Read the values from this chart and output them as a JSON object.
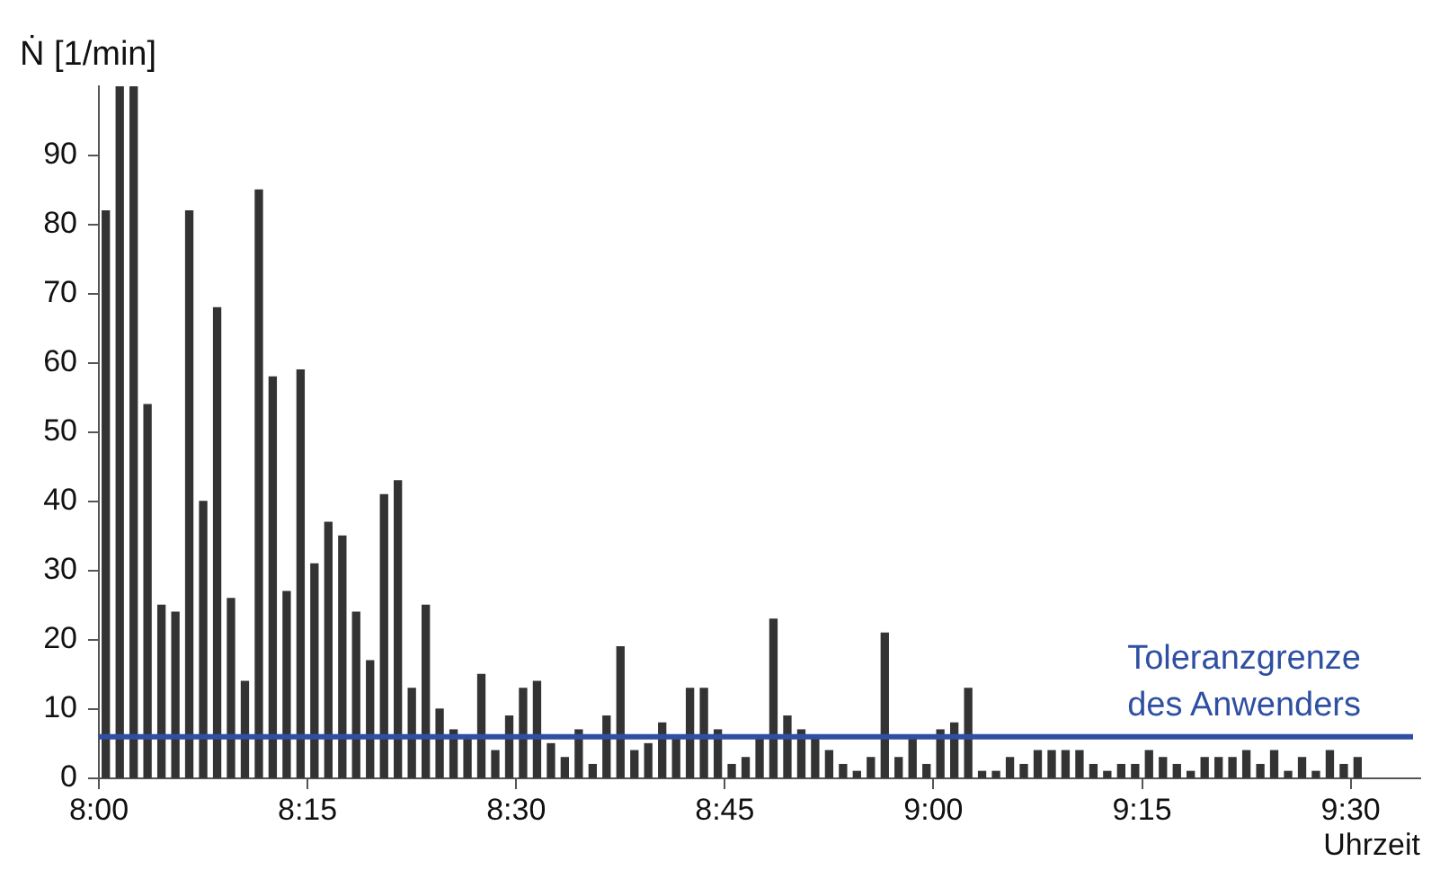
{
  "chart_data": {
    "type": "bar",
    "ylabel": "Ṅ [1/min]",
    "xlabel": "Uhrzeit",
    "x": [
      8.0083,
      8.025,
      8.0417,
      8.0583,
      8.075,
      8.0917,
      8.1083,
      8.125,
      8.1417,
      8.1583,
      8.175,
      8.1917,
      8.2083,
      8.225,
      8.2417,
      8.2583,
      8.275,
      8.2917,
      8.3083,
      8.325,
      8.3417,
      8.3583,
      8.375,
      8.3917,
      8.4083,
      8.425,
      8.4417,
      8.4583,
      8.475,
      8.4917,
      8.5083,
      8.525,
      8.5417,
      8.5583,
      8.575,
      8.5917,
      8.6083,
      8.625,
      8.6417,
      8.6583,
      8.675,
      8.6917,
      8.7083,
      8.725,
      8.7417,
      8.7583,
      8.775,
      8.7917,
      8.8083,
      8.825,
      8.8417,
      8.8583,
      8.875,
      8.8917,
      8.9083,
      8.925,
      8.9417,
      8.9583,
      8.975,
      8.9917,
      9.0083,
      9.025,
      9.0417,
      9.0583,
      9.075,
      9.0917,
      9.1083,
      9.125,
      9.1417,
      9.1583,
      9.175,
      9.1917,
      9.2083,
      9.225,
      9.2417,
      9.2583,
      9.275,
      9.2917,
      9.3083,
      9.325,
      9.3417,
      9.3583,
      9.375,
      9.3917,
      9.4083,
      9.425,
      9.4417,
      9.4583,
      9.475,
      9.4917,
      9.5083
    ],
    "values": [
      82,
      100,
      100,
      54,
      25,
      24,
      82,
      40,
      68,
      26,
      14,
      85,
      58,
      27,
      59,
      31,
      37,
      35,
      24,
      17,
      41,
      43,
      13,
      25,
      10,
      7,
      6,
      15,
      4,
      9,
      13,
      14,
      5,
      3,
      7,
      2,
      9,
      19,
      4,
      5,
      8,
      6,
      13,
      13,
      7,
      2,
      3,
      6,
      23,
      9,
      7,
      6,
      4,
      2,
      1,
      3,
      21,
      3,
      6,
      2,
      7,
      8,
      13,
      1,
      1,
      3,
      2,
      4,
      4,
      4,
      4,
      2,
      1,
      2,
      2,
      4,
      3,
      2,
      1,
      3,
      3,
      3,
      4,
      2,
      4,
      1,
      3,
      1,
      4,
      2,
      3
    ],
    "color": "#333333",
    "xlim": [
      8,
      9.5833
    ],
    "xticks": [
      {
        "value": 8,
        "label": "8:00"
      },
      {
        "value": 8.25,
        "label": "8:15"
      },
      {
        "value": 8.5,
        "label": "8:30"
      },
      {
        "value": 8.75,
        "label": "8:45"
      },
      {
        "value": 9,
        "label": "9:00"
      },
      {
        "value": 9.25,
        "label": "9:15"
      },
      {
        "value": 9.5,
        "label": "9:30"
      }
    ],
    "ylim": [
      0,
      100
    ],
    "yticks": [
      0,
      10,
      20,
      30,
      40,
      50,
      60,
      70,
      80,
      90
    ],
    "ref_lines": [
      {
        "axis": "y",
        "value": 6,
        "label": "Toleranzgrenze des Anwenders",
        "color": "#2f4fa2"
      }
    ],
    "grid": false,
    "legend": false
  }
}
